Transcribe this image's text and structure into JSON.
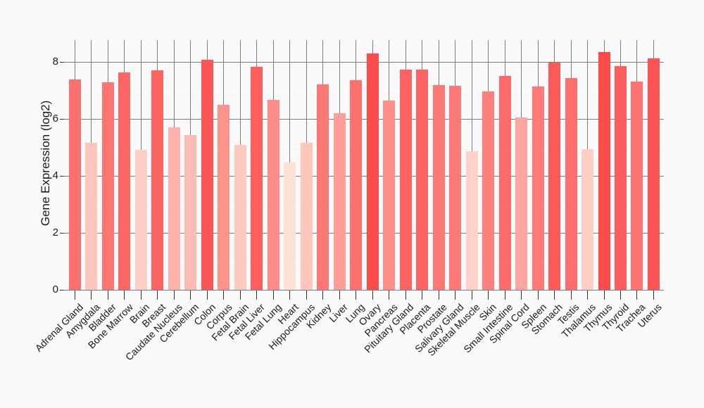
{
  "chart_data": {
    "type": "bar",
    "title": "",
    "xlabel": "",
    "ylabel": "Gene Expression (log2)",
    "categories": [
      "Adrenal Gland",
      "Amygdala",
      "Bladder",
      "Bone Marrow",
      "Brain",
      "Breast",
      "Caudate Nucleus",
      "Cerebellum",
      "Colon",
      "Corpus",
      "Fetal Brain",
      "Fetal Liver",
      "Fetal Lung",
      "Heart",
      "Hippocampus",
      "Kidney",
      "Liver",
      "Lung",
      "Ovary",
      "Pancreas",
      "Pituitary Gland",
      "Placenta",
      "Prostate",
      "Salivary Gland",
      "Skeletal Muscle",
      "Skin",
      "Small Intestine",
      "Spinal Cord",
      "Spleen",
      "Stomach",
      "Testis",
      "Thalamus",
      "Thymus",
      "Thyroid",
      "Trachea",
      "Uterus"
    ],
    "values": [
      7.39,
      5.17,
      7.29,
      7.64,
      4.93,
      7.72,
      5.71,
      5.45,
      8.09,
      6.49,
      5.1,
      7.84,
      6.68,
      4.47,
      5.17,
      7.21,
      6.21,
      7.37,
      8.31,
      6.65,
      7.73,
      7.73,
      7.2,
      7.17,
      4.87,
      6.98,
      7.52,
      6.05,
      7.14,
      7.98,
      7.43,
      4.95,
      8.36,
      7.86,
      7.31,
      8.13
    ],
    "ylim": [
      0,
      8.78
    ],
    "yticks": [
      0,
      2,
      4,
      6,
      8
    ],
    "yticks_minor": [
      1,
      3,
      5,
      7
    ],
    "legend": "none",
    "grid": {
      "vertical": "gray line at each category center, full panel height",
      "horizontal_major": "gray lines at 0,2,4,6,8",
      "horizontal_minor": "white lines at 1,3,5,7"
    },
    "colors": {
      "background": "#F9F9F9",
      "gridline_major": "#7D7D7D",
      "gridline_minor": "#FFFFFF",
      "axis_tick": "#333333",
      "text": "#1A1A1A",
      "bar_scale_low": "#FDE2D6",
      "bar_scale_high": "#FC4B4B",
      "bar_scale_domain": [
        4.47,
        8.36
      ]
    }
  }
}
